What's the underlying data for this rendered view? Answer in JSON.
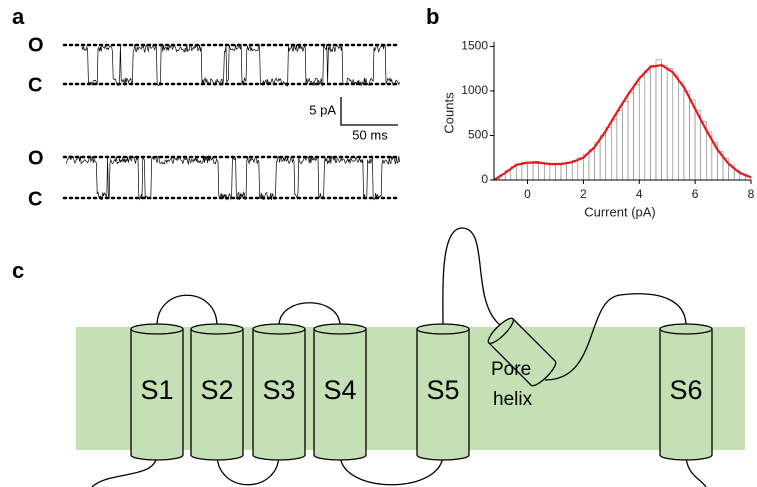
{
  "panel_a": {
    "label": "a",
    "traces": [
      {
        "open": "O",
        "closed": "C"
      },
      {
        "open": "O",
        "closed": "C"
      }
    ],
    "scale_y": "5 pA",
    "scale_x": "50 ms"
  },
  "chart_data": {
    "type": "histogram",
    "panel_label": "b",
    "xlabel": "Current (pA)",
    "ylabel": "Counts",
    "bins": [
      -1.2,
      -1.0,
      -0.8,
      -0.6,
      -0.4,
      -0.2,
      0.0,
      0.2,
      0.4,
      0.6,
      0.8,
      1.0,
      1.2,
      1.4,
      1.6,
      1.8,
      2.0,
      2.2,
      2.4,
      2.6,
      2.8,
      3.0,
      3.2,
      3.4,
      3.6,
      3.8,
      4.0,
      4.2,
      4.4,
      4.6,
      4.8,
      5.0,
      5.2,
      5.4,
      5.6,
      5.8,
      6.0,
      6.2,
      6.4,
      6.6,
      6.8,
      7.0,
      7.2,
      7.4,
      7.6,
      7.8,
      8.0
    ],
    "values": [
      20,
      60,
      110,
      150,
      180,
      200,
      190,
      210,
      190,
      180,
      170,
      180,
      190,
      200,
      220,
      250,
      290,
      340,
      420,
      500,
      590,
      680,
      780,
      880,
      980,
      1070,
      1160,
      1230,
      1290,
      1350,
      1290,
      1250,
      1180,
      1100,
      1000,
      900,
      780,
      660,
      540,
      420,
      320,
      240,
      170,
      110,
      70,
      40
    ],
    "color": "#ffffff",
    "edge_color": "#7f7f7f",
    "fit": {
      "color": "#e41a1c",
      "x": [
        -1.2,
        -0.8,
        -0.4,
        0.0,
        0.4,
        0.8,
        1.2,
        1.6,
        2.0,
        2.4,
        2.8,
        3.2,
        3.6,
        4.0,
        4.4,
        4.8,
        5.2,
        5.6,
        6.0,
        6.4,
        6.8,
        7.2,
        7.6,
        8.0
      ],
      "values": [
        0,
        80,
        170,
        195,
        195,
        180,
        180,
        200,
        250,
        370,
        550,
        760,
        960,
        1140,
        1270,
        1290,
        1210,
        1040,
        800,
        560,
        340,
        180,
        80,
        30
      ]
    },
    "xlim": [
      -1.2,
      8
    ],
    "ylim": [
      0,
      1550
    ],
    "xticks": [
      0,
      2,
      4,
      6,
      8
    ],
    "yticks": [
      0,
      500,
      1000,
      1500
    ]
  },
  "panel_c": {
    "label": "c",
    "segments": [
      "S1",
      "S2",
      "S3",
      "S4",
      "S5",
      "S6"
    ],
    "pore_helix": [
      "Pore",
      "helix"
    ]
  }
}
